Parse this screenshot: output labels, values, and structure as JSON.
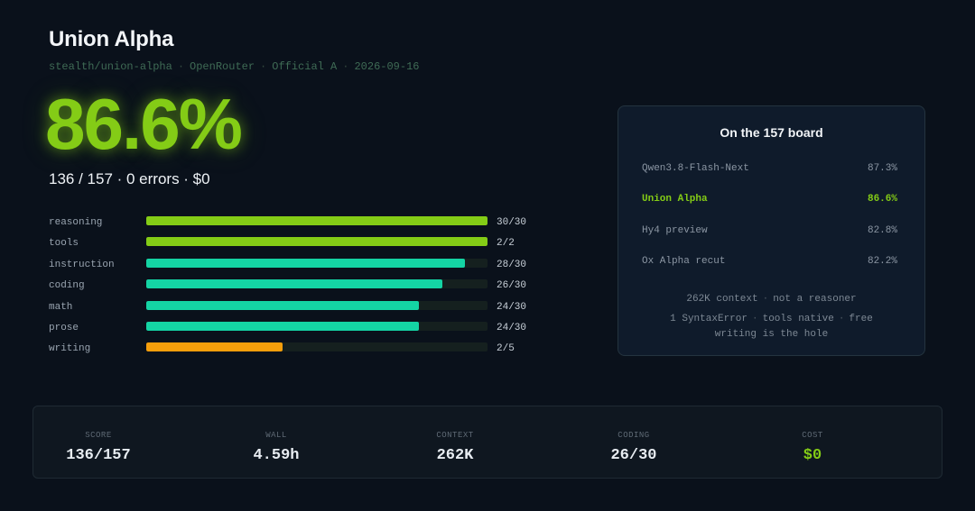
{
  "header": {
    "title": "Union Alpha",
    "meta": [
      "stealth/union-alpha",
      "OpenRouter",
      "Official A",
      "2026-09-16"
    ],
    "separator": "·"
  },
  "score": {
    "percent": "86.6%",
    "summary": "136 / 157 · 0 errors · $0"
  },
  "categories": [
    {
      "label": "reasoning",
      "count": "30/30",
      "fraction": 1.0,
      "color": "#84cc16"
    },
    {
      "label": "tools",
      "count": "2/2",
      "fraction": 1.0,
      "color": "#84cc16"
    },
    {
      "label": "instruction",
      "count": "28/30",
      "fraction": 0.933,
      "color": "#14d4a4"
    },
    {
      "label": "coding",
      "count": "26/30",
      "fraction": 0.867,
      "color": "#14d4a4"
    },
    {
      "label": "math",
      "count": "24/30",
      "fraction": 0.8,
      "color": "#14d4a4"
    },
    {
      "label": "prose",
      "count": "24/30",
      "fraction": 0.8,
      "color": "#14d4a4"
    },
    {
      "label": "writing",
      "count": "2/5",
      "fraction": 0.4,
      "color": "#f59e0b"
    }
  ],
  "board": {
    "title": "On the 157 board",
    "rows": [
      {
        "name": "Qwen3.8-Flash-Next",
        "score": "87.3%",
        "highlight": false
      },
      {
        "name": "Union Alpha",
        "score": "86.6%",
        "highlight": true
      },
      {
        "name": "Hy4 preview",
        "score": "82.8%",
        "highlight": false
      },
      {
        "name": "Ox Alpha recut",
        "score": "82.2%",
        "highlight": false
      }
    ],
    "notes": [
      [
        "262K context",
        "not a reasoner"
      ],
      [
        "1 SyntaxError",
        "tools native",
        "free"
      ],
      [
        "writing is the hole"
      ]
    ]
  },
  "stats": [
    {
      "label": "SCORE",
      "value": "136/157",
      "color": "#e8edf2"
    },
    {
      "label": "WALL",
      "value": "4.59h",
      "color": "#e8edf2"
    },
    {
      "label": "CONTEXT",
      "value": "262K",
      "color": "#e8edf2"
    },
    {
      "label": "CODING",
      "value": "26/30",
      "color": "#e8edf2"
    },
    {
      "label": "COST",
      "value": "$0",
      "color": "#84cc16"
    }
  ]
}
